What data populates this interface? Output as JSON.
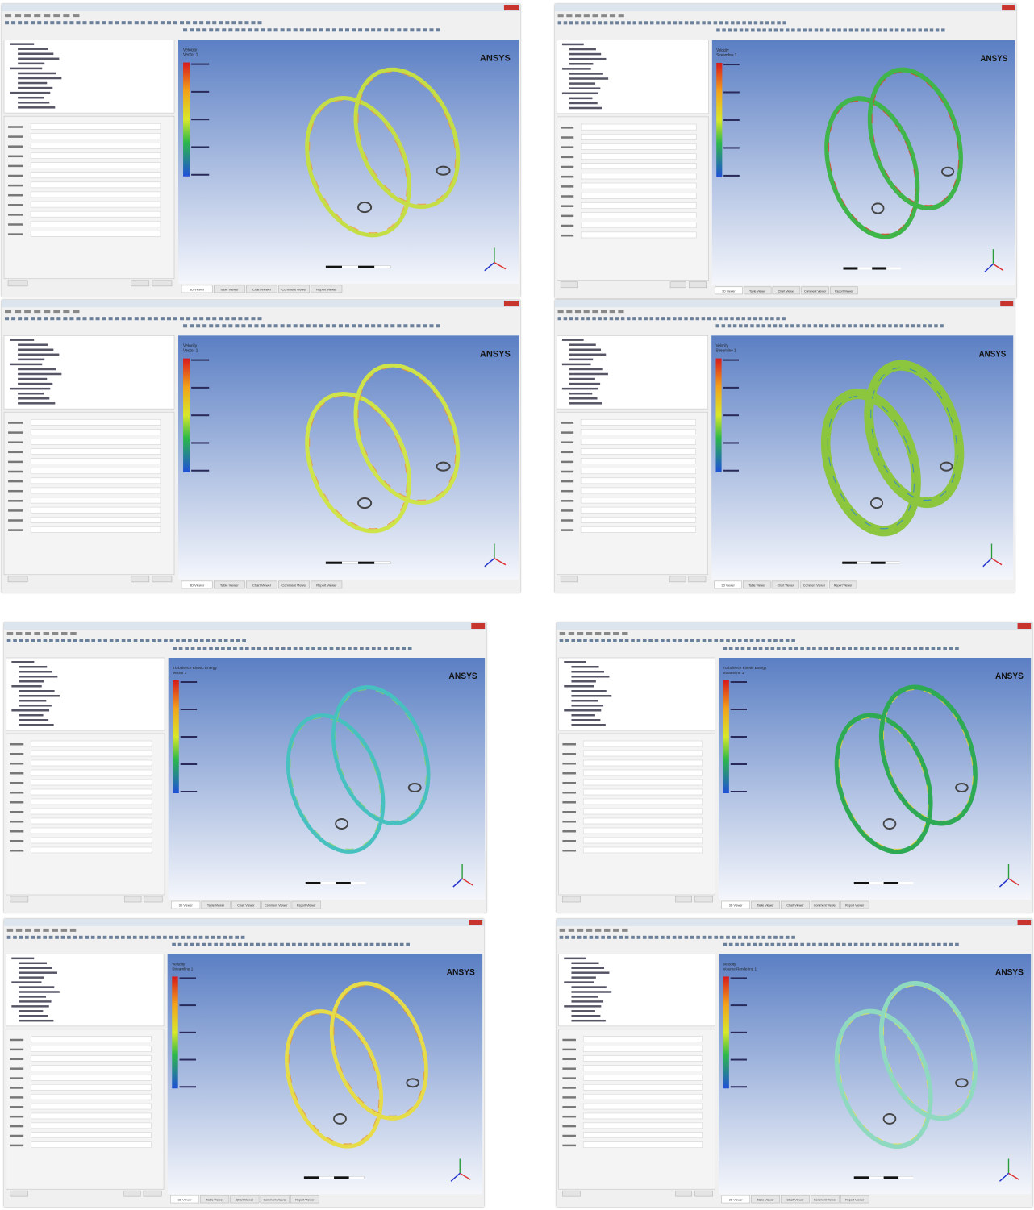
{
  "viewer_tabs": [
    "3D Viewer",
    "Table Viewer",
    "Chart Viewer",
    "Comment Viewer",
    "Report Viewer"
  ],
  "panels": [
    {
      "logo": "ANSYS",
      "legend_title": "Velocity",
      "legend_subtitle": "Vector 1"
    },
    {
      "logo": "ANSYS",
      "legend_title": "Velocity",
      "legend_subtitle": "Streamline 1"
    },
    {
      "logo": "ANSYS",
      "legend_title": "Velocity",
      "legend_subtitle": "Vector 1"
    },
    {
      "logo": "ANSYS",
      "legend_title": "Velocity",
      "legend_subtitle": "Streamline 1"
    },
    {
      "logo": "ANSYS",
      "legend_title": "Turbulence Kinetic Energy",
      "legend_subtitle": "Vector 1"
    },
    {
      "logo": "ANSYS",
      "legend_title": "Turbulence Kinetic Energy",
      "legend_subtitle": "Streamline 1"
    },
    {
      "logo": "ANSYS",
      "legend_title": "Velocity",
      "legend_subtitle": "Streamline 1"
    },
    {
      "logo": "ANSYS",
      "legend_title": "Velocity",
      "legend_subtitle": "Volume Rendering 1"
    }
  ]
}
